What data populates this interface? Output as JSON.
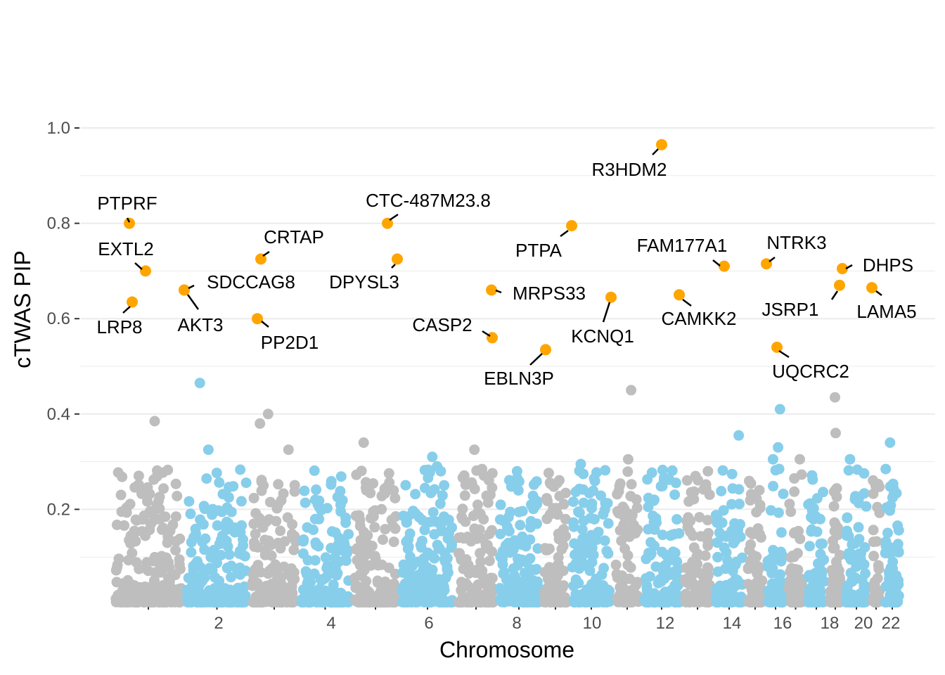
{
  "chart_data": {
    "type": "scatter",
    "title": "",
    "xlabel": "Chromosome",
    "ylabel": "cTWAS PIP",
    "ylim": [
      0,
      1.0
    ],
    "y_ticks": [
      0.2,
      0.4,
      0.6,
      0.8,
      1.0
    ],
    "y_tick_labels": [
      "0.2",
      "0.4",
      "0.6",
      "0.8",
      "1.0"
    ],
    "x_tick_labels": [
      "2",
      "4",
      "6",
      "8",
      "10",
      "12",
      "14",
      "16",
      "18",
      "20",
      "22"
    ],
    "grid": true,
    "legend": "none",
    "colors": {
      "odd_chromosome": "#BEBEBE",
      "even_chromosome": "#87CEEB",
      "highlight": "#FFA500",
      "grid": "#EBEBEB",
      "text": "#4D4D4D"
    },
    "chromosomes": [
      1,
      2,
      3,
      4,
      5,
      6,
      7,
      8,
      9,
      10,
      11,
      12,
      13,
      14,
      15,
      16,
      17,
      18,
      19,
      20,
      21,
      22
    ],
    "highlighted_genes": [
      {
        "gene": "R3HDM2",
        "chromosome": 12,
        "pip": 0.965
      },
      {
        "gene": "PTPRF",
        "chromosome": 1,
        "pip": 0.8
      },
      {
        "gene": "CTC-487M23.8",
        "chromosome": 5,
        "pip": 0.8
      },
      {
        "gene": "PTPA",
        "chromosome": 9,
        "pip": 0.795
      },
      {
        "gene": "CRTAP",
        "chromosome": 3,
        "pip": 0.725
      },
      {
        "gene": "DPYSL3",
        "chromosome": 5,
        "pip": 0.725
      },
      {
        "gene": "NTRK3",
        "chromosome": 15,
        "pip": 0.715
      },
      {
        "gene": "FAM177A1",
        "chromosome": 14,
        "pip": 0.71
      },
      {
        "gene": "DHPS",
        "chromosome": 19,
        "pip": 0.705
      },
      {
        "gene": "EXTL2",
        "chromosome": 1,
        "pip": 0.7
      },
      {
        "gene": "JSRP1",
        "chromosome": 19,
        "pip": 0.67
      },
      {
        "gene": "LAMA5",
        "chromosome": 20,
        "pip": 0.665
      },
      {
        "gene": "MRPS33",
        "chromosome": 7,
        "pip": 0.66
      },
      {
        "gene": "SDCCAG8",
        "chromosome": 1,
        "pip": 0.66
      },
      {
        "gene": "AKT3",
        "chromosome": 1,
        "pip": 0.66
      },
      {
        "gene": "CAMKK2",
        "chromosome": 12,
        "pip": 0.65
      },
      {
        "gene": "KCNQ1",
        "chromosome": 11,
        "pip": 0.645
      },
      {
        "gene": "LRP8",
        "chromosome": 1,
        "pip": 0.635
      },
      {
        "gene": "PP2D1",
        "chromosome": 3,
        "pip": 0.6
      },
      {
        "gene": "CASP2",
        "chromosome": 7,
        "pip": 0.56
      },
      {
        "gene": "UQCRC2",
        "chromosome": 16,
        "pip": 0.54
      },
      {
        "gene": "EBLN3P",
        "chromosome": 9,
        "pip": 0.535
      }
    ],
    "notable_background_points": [
      {
        "chromosome": 2,
        "pip": 0.465
      },
      {
        "chromosome": 11,
        "pip": 0.45
      },
      {
        "chromosome": 19,
        "pip": 0.435
      },
      {
        "chromosome": 16,
        "pip": 0.41
      },
      {
        "chromosome": 3,
        "pip": 0.4
      },
      {
        "chromosome": 1,
        "pip": 0.385
      },
      {
        "chromosome": 3,
        "pip": 0.38
      },
      {
        "chromosome": 19,
        "pip": 0.36
      },
      {
        "chromosome": 14,
        "pip": 0.355
      },
      {
        "chromosome": 22,
        "pip": 0.34
      },
      {
        "chromosome": 5,
        "pip": 0.34
      },
      {
        "chromosome": 16,
        "pip": 0.33
      },
      {
        "chromosome": 7,
        "pip": 0.325
      },
      {
        "chromosome": 3,
        "pip": 0.325
      },
      {
        "chromosome": 2,
        "pip": 0.325
      },
      {
        "chromosome": 6,
        "pip": 0.31
      },
      {
        "chromosome": 20,
        "pip": 0.305
      },
      {
        "chromosome": 11,
        "pip": 0.305
      },
      {
        "chromosome": 17,
        "pip": 0.305
      },
      {
        "chromosome": 16,
        "pip": 0.305
      },
      {
        "chromosome": 10,
        "pip": 0.295
      },
      {
        "chromosome": 6,
        "pip": 0.29
      },
      {
        "chromosome": 8,
        "pip": 0.28
      }
    ]
  }
}
